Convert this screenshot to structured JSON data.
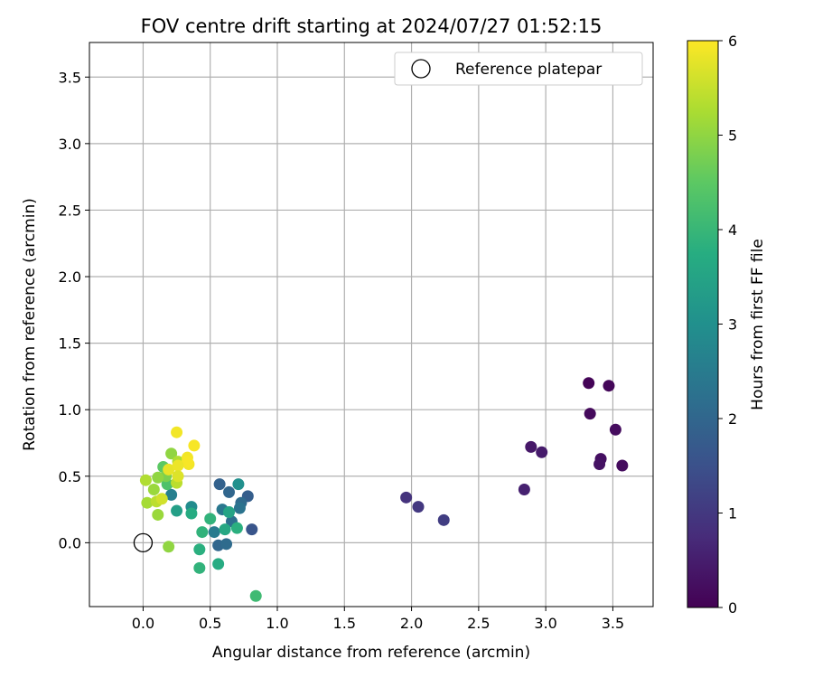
{
  "chart_data": {
    "type": "scatter",
    "title": "FOV centre drift starting at 2024/07/27 01:52:15",
    "xlabel": "Angular distance from reference (arcmin)",
    "ylabel": "Rotation from reference (arcmin)",
    "xlim": [
      -0.4,
      3.8
    ],
    "ylim": [
      -0.48,
      3.76
    ],
    "xticks": [
      0.0,
      0.5,
      1.0,
      1.5,
      2.0,
      2.5,
      3.0,
      3.5
    ],
    "xtick_labels": [
      "0.0",
      "0.5",
      "1.0",
      "1.5",
      "2.0",
      "2.5",
      "3.0",
      "3.5"
    ],
    "yticks": [
      0.0,
      0.5,
      1.0,
      1.5,
      2.0,
      2.5,
      3.0,
      3.5
    ],
    "ytick_labels": [
      "0.0",
      "0.5",
      "1.0",
      "1.5",
      "2.0",
      "2.5",
      "3.0",
      "3.5"
    ],
    "grid": true,
    "legend": {
      "placement": "top-right",
      "entries": [
        "Reference platepar"
      ]
    },
    "reference_point": {
      "x": 0.0,
      "y": 0.0,
      "label": "Reference platepar"
    },
    "colorbar": {
      "label": "Hours from first FF file",
      "range": [
        0,
        6
      ],
      "ticks": [
        0,
        1,
        2,
        3,
        4,
        5,
        6
      ],
      "tick_labels": [
        "0",
        "1",
        "2",
        "3",
        "4",
        "5",
        "6"
      ],
      "colormap": "viridis"
    },
    "points": [
      {
        "x": 3.32,
        "y": 1.2,
        "c": 0.05
      },
      {
        "x": 3.47,
        "y": 1.18,
        "c": 0.1
      },
      {
        "x": 3.33,
        "y": 0.97,
        "c": 0.15
      },
      {
        "x": 3.52,
        "y": 0.85,
        "c": 0.2
      },
      {
        "x": 3.41,
        "y": 0.63,
        "c": 0.25
      },
      {
        "x": 3.4,
        "y": 0.59,
        "c": 0.3
      },
      {
        "x": 3.57,
        "y": 0.58,
        "c": 0.2
      },
      {
        "x": 2.89,
        "y": 0.72,
        "c": 0.4
      },
      {
        "x": 2.97,
        "y": 0.68,
        "c": 0.45
      },
      {
        "x": 2.84,
        "y": 0.4,
        "c": 0.55
      },
      {
        "x": 1.96,
        "y": 0.34,
        "c": 0.9
      },
      {
        "x": 2.05,
        "y": 0.27,
        "c": 1.0
      },
      {
        "x": 2.24,
        "y": 0.17,
        "c": 1.1
      },
      {
        "x": 0.57,
        "y": 0.44,
        "c": 1.9
      },
      {
        "x": 0.64,
        "y": 0.38,
        "c": 2.0
      },
      {
        "x": 0.78,
        "y": 0.35,
        "c": 1.8
      },
      {
        "x": 0.81,
        "y": 0.1,
        "c": 1.6
      },
      {
        "x": 0.73,
        "y": 0.3,
        "c": 2.1
      },
      {
        "x": 0.72,
        "y": 0.26,
        "c": 2.3
      },
      {
        "x": 0.59,
        "y": 0.25,
        "c": 2.4
      },
      {
        "x": 0.66,
        "y": 0.16,
        "c": 2.2
      },
      {
        "x": 0.53,
        "y": 0.08,
        "c": 2.5
      },
      {
        "x": 0.56,
        "y": -0.02,
        "c": 2.0
      },
      {
        "x": 0.62,
        "y": -0.01,
        "c": 2.1
      },
      {
        "x": 0.71,
        "y": 0.44,
        "c": 3.0
      },
      {
        "x": 0.36,
        "y": 0.27,
        "c": 2.9
      },
      {
        "x": 0.21,
        "y": 0.36,
        "c": 2.6
      },
      {
        "x": 0.25,
        "y": 0.24,
        "c": 3.4
      },
      {
        "x": 0.64,
        "y": 0.23,
        "c": 3.5
      },
      {
        "x": 0.61,
        "y": 0.1,
        "c": 3.6
      },
      {
        "x": 0.7,
        "y": 0.11,
        "c": 3.8
      },
      {
        "x": 0.5,
        "y": 0.18,
        "c": 3.9
      },
      {
        "x": 0.44,
        "y": 0.08,
        "c": 3.9
      },
      {
        "x": 0.36,
        "y": 0.22,
        "c": 3.7
      },
      {
        "x": 0.42,
        "y": -0.05,
        "c": 3.8
      },
      {
        "x": 0.56,
        "y": -0.16,
        "c": 3.7
      },
      {
        "x": 0.42,
        "y": -0.19,
        "c": 3.9
      },
      {
        "x": 0.84,
        "y": -0.4,
        "c": 4.1
      },
      {
        "x": 0.18,
        "y": 0.44,
        "c": 4.3
      },
      {
        "x": 0.15,
        "y": 0.57,
        "c": 4.5
      },
      {
        "x": 0.21,
        "y": 0.67,
        "c": 5.0
      },
      {
        "x": 0.26,
        "y": 0.61,
        "c": 5.3
      },
      {
        "x": 0.17,
        "y": 0.5,
        "c": 4.8
      },
      {
        "x": 0.11,
        "y": 0.49,
        "c": 5.0
      },
      {
        "x": 0.08,
        "y": 0.4,
        "c": 5.1
      },
      {
        "x": 0.02,
        "y": 0.47,
        "c": 5.3
      },
      {
        "x": 0.03,
        "y": 0.3,
        "c": 5.2
      },
      {
        "x": 0.11,
        "y": 0.21,
        "c": 5.1
      },
      {
        "x": 0.1,
        "y": 0.31,
        "c": 5.4
      },
      {
        "x": 0.14,
        "y": 0.33,
        "c": 5.6
      },
      {
        "x": 0.19,
        "y": -0.03,
        "c": 5.0
      },
      {
        "x": 0.25,
        "y": 0.45,
        "c": 5.4
      },
      {
        "x": 0.19,
        "y": 0.55,
        "c": 5.8
      },
      {
        "x": 0.25,
        "y": 0.83,
        "c": 5.9
      },
      {
        "x": 0.38,
        "y": 0.73,
        "c": 5.95
      },
      {
        "x": 0.33,
        "y": 0.64,
        "c": 5.9
      },
      {
        "x": 0.34,
        "y": 0.59,
        "c": 5.9
      },
      {
        "x": 0.33,
        "y": 0.61,
        "c": 5.95
      },
      {
        "x": 0.26,
        "y": 0.58,
        "c": 5.85
      },
      {
        "x": 0.26,
        "y": 0.5,
        "c": 5.7
      }
    ]
  }
}
